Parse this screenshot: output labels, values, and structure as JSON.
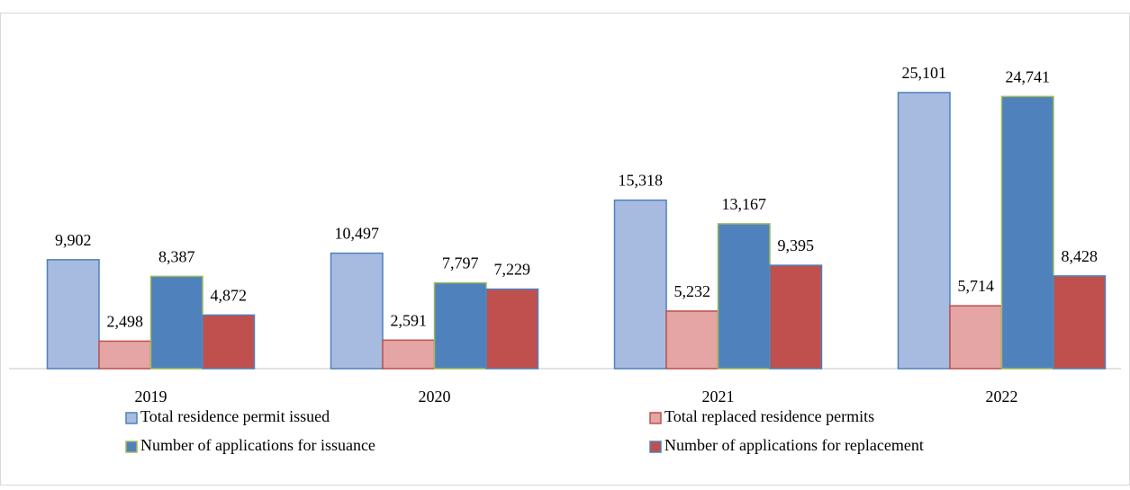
{
  "chart_data": {
    "type": "bar",
    "categories": [
      "2019",
      "2020",
      "2021",
      "2022"
    ],
    "series": [
      {
        "name": "Total residence permit issued",
        "color": "#a7bbe0",
        "values": [
          9902,
          10497,
          15318,
          25101
        ],
        "value_labels": [
          "9,902",
          "10,497",
          "15,318",
          "25,101"
        ]
      },
      {
        "name": "Total replaced residence permits",
        "color": "#e4a5a4",
        "values": [
          2498,
          2591,
          5232,
          5714
        ],
        "value_labels": [
          "2,498",
          "2,591",
          "5,232",
          "5,714"
        ]
      },
      {
        "name": "Number of applications for issuance",
        "color": "#4f81bd",
        "values": [
          8387,
          7797,
          13167,
          24741
        ],
        "value_labels": [
          "8,387",
          "7,797",
          "13,167",
          "24,741"
        ]
      },
      {
        "name": "Number of applications for replacement",
        "color": "#c0504d",
        "values": [
          4872,
          7229,
          9395,
          8428
        ],
        "value_labels": [
          "4,872",
          "7,229",
          "9,395",
          "8,428"
        ]
      }
    ],
    "ylim": [
      0,
      30000
    ],
    "legend": "bottom"
  }
}
